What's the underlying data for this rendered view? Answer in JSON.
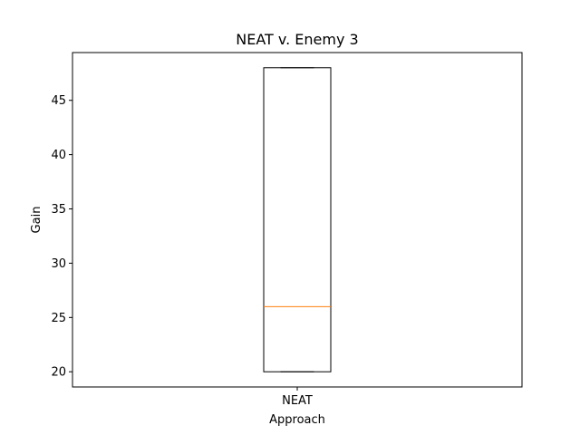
{
  "chart_data": {
    "type": "box",
    "title": "NEAT v. Enemy 3",
    "xlabel": "Approach",
    "ylabel": "Gain",
    "categories": [
      "NEAT"
    ],
    "boxes": [
      {
        "category": "NEAT",
        "whisker_low": 20,
        "q1": 20,
        "median": 26,
        "q3": 48,
        "whisker_high": 48
      }
    ],
    "ylim": [
      18.6,
      49.4
    ],
    "yticks": [
      "20",
      "25",
      "30",
      "35",
      "40",
      "45"
    ],
    "grid": false,
    "colors": {
      "box": "#000000",
      "median": "#ff7f0e",
      "axes": "#000000"
    }
  }
}
